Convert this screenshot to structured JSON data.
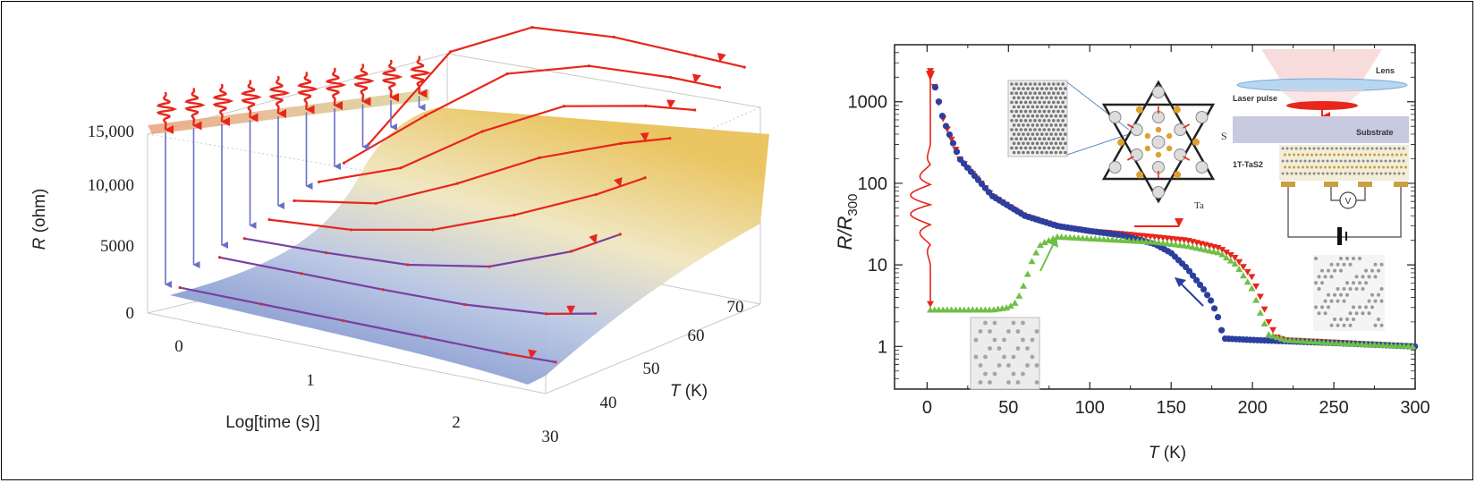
{
  "chart_data": [
    {
      "type": "area",
      "surface": "3d",
      "x_label_text": "Log[time (s)]",
      "y_label_var": "R",
      "y_label_unit": " (ohm)",
      "z_label_var": "T",
      "z_label_unit": " (K)",
      "x_ticks": [
        "0",
        "1",
        "2"
      ],
      "y_ticks": [
        "0",
        "5000",
        "10,000",
        "15,000"
      ],
      "z_ticks": [
        "30",
        "40",
        "50",
        "60",
        "70"
      ],
      "ylim": [
        0,
        15000
      ],
      "series": [
        {
          "T": 32,
          "logt": [
            0,
            0.5,
            1.0,
            1.5,
            2.0,
            2.3
          ],
          "R": [
            0,
            100,
            200,
            300,
            400,
            600
          ]
        },
        {
          "T": 40,
          "logt": [
            0,
            0.5,
            1.0,
            1.5,
            2.0,
            2.3
          ],
          "R": [
            0,
            200,
            400,
            700,
            1500,
            2500
          ]
        },
        {
          "T": 45,
          "logt": [
            0,
            0.5,
            1.0,
            1.5,
            2.0,
            2.3
          ],
          "R": [
            0,
            400,
            1000,
            2500,
            5500,
            8000
          ]
        },
        {
          "T": 50,
          "logt": [
            0,
            0.5,
            1.0,
            1.5,
            2.0,
            2.3
          ],
          "R": [
            0,
            800,
            2500,
            5500,
            9000,
            11500
          ]
        },
        {
          "T": 55,
          "logt": [
            0,
            0.5,
            1.0,
            1.5,
            2.0,
            2.3
          ],
          "R": [
            0,
            1500,
            5000,
            9000,
            12000,
            13500
          ]
        },
        {
          "T": 60,
          "logt": [
            0,
            0.5,
            1.0,
            1.5,
            2.0,
            2.3
          ],
          "R": [
            0,
            3000,
            8000,
            12000,
            13800,
            14500
          ]
        },
        {
          "T": 65,
          "logt": [
            0,
            0.5,
            1.0,
            1.5,
            2.0,
            2.3
          ],
          "R": [
            0,
            6000,
            11500,
            14000,
            14800,
            15000
          ]
        },
        {
          "T": 70,
          "logt": [
            0,
            0.5,
            1.0,
            1.5,
            2.0,
            2.3
          ],
          "R": [
            0,
            10000,
            14000,
            15000,
            15200,
            15300
          ]
        }
      ],
      "colors": {
        "surface_low": "#5a7ec4",
        "surface_high": "#e8c060",
        "pulse": "#e8261b",
        "arrows": "#6a70c8"
      }
    },
    {
      "type": "scatter",
      "xlabel_var": "T",
      "xlabel_unit": " (K)",
      "ylabel_var": "R/R",
      "ylabel_sub": "300",
      "xlim": [
        -20,
        300
      ],
      "ylim": [
        0.3,
        5000
      ],
      "yscale": "log",
      "x_ticks": [
        "0",
        "50",
        "100",
        "150",
        "200",
        "250",
        "300"
      ],
      "y_ticks": [
        "1",
        "10",
        "100",
        "1000"
      ],
      "series": [
        {
          "color": "#e8261b",
          "marker": "triangle-down",
          "x": [
            2,
            10,
            20,
            40,
            60,
            80,
            100,
            120,
            140,
            160,
            180,
            190,
            200,
            205,
            210,
            215,
            220,
            240,
            260,
            280,
            300
          ],
          "y": [
            2400,
            600,
            200,
            70,
            40,
            30,
            26,
            24,
            22,
            20,
            16,
            12,
            7,
            4,
            2,
            1.3,
            1.2,
            1.15,
            1.1,
            1.05,
            1.0
          ]
        },
        {
          "color": "#2c3fa0",
          "marker": "circle",
          "x": [
            5,
            10,
            20,
            40,
            60,
            80,
            100,
            120,
            140,
            150,
            160,
            170,
            175,
            178,
            180,
            182,
            200,
            250,
            300
          ],
          "y": [
            1500,
            600,
            200,
            70,
            40,
            30,
            26,
            23,
            18,
            14,
            9,
            5,
            3.5,
            2.5,
            2.0,
            1.25,
            1.2,
            1.1,
            1.0
          ]
        },
        {
          "color": "#6fbf45",
          "marker": "triangle-up",
          "x": [
            2,
            20,
            40,
            50,
            55,
            60,
            65,
            70,
            80,
            100,
            120,
            140,
            160,
            180,
            190,
            200,
            205,
            210,
            220,
            250,
            300
          ],
          "y": [
            2.8,
            2.8,
            2.8,
            3.0,
            3.5,
            6,
            12,
            18,
            22,
            21,
            20,
            19,
            17,
            14,
            10,
            5,
            2.5,
            1.4,
            1.2,
            1.1,
            1.0
          ]
        }
      ],
      "inset_labels": {
        "lens": "Lens",
        "laser": "Laser pulse",
        "substrate": "Substrate",
        "sample": "1T-TaS2",
        "voltmeter": "V",
        "s_atom": "S",
        "ta_atom": "Ta"
      }
    }
  ]
}
